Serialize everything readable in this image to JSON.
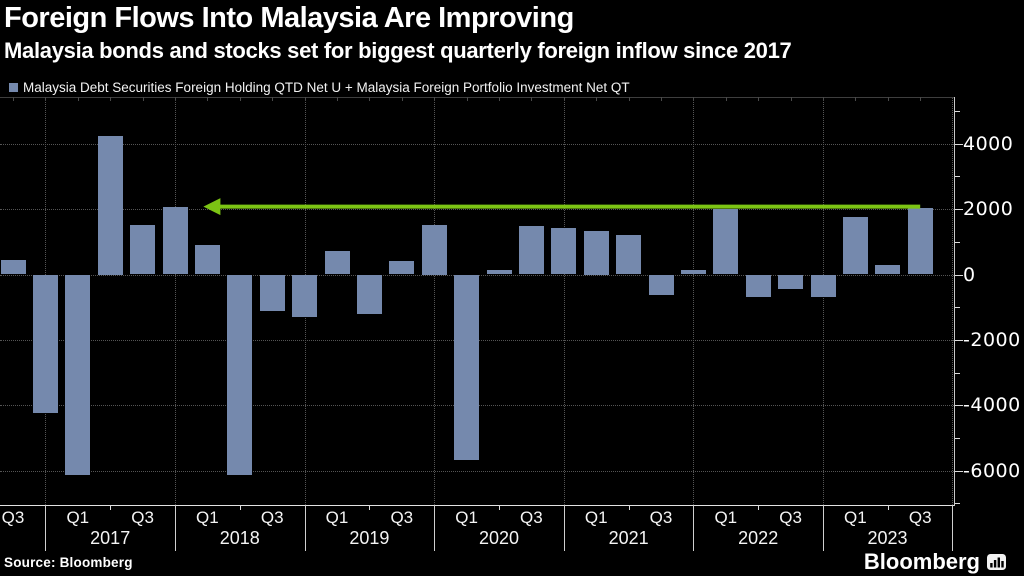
{
  "title": "Foreign Flows Into Malaysia Are Improving",
  "subtitle": "Malaysia bonds and stocks set for biggest quarterly foreign inflow since 2017",
  "legend": {
    "label": "Malaysia Debt Securities Foreign Holding QTD Net U + Malaysia Foreign Portfolio Investment Net QT",
    "marker_color": "#7589ad"
  },
  "source": "Source:  Bloomberg",
  "brand": {
    "name": "Bloomberg",
    "icon": "bar-chart-icon"
  },
  "colors": {
    "background": "#000000",
    "bar": "#7589ad",
    "arrow": "#7cc414",
    "grid": "#555555",
    "axis": "#e2e2e2",
    "text": "#ffffff"
  },
  "chart_data": {
    "type": "bar",
    "title": "Foreign Flows Into Malaysia Are Improving",
    "subtitle": "Malaysia bonds and stocks set for biggest quarterly foreign inflow since 2017",
    "series_name": "Malaysia Debt Securities Foreign Holding QTD Net U + Malaysia Foreign Portfolio Investment Net QT",
    "categories": [
      "Q3 2016",
      "Q4 2016",
      "Q1 2017",
      "Q2 2017",
      "Q3 2017",
      "Q4 2017",
      "Q1 2018",
      "Q2 2018",
      "Q3 2018",
      "Q4 2018",
      "Q1 2019",
      "Q2 2019",
      "Q3 2019",
      "Q4 2019",
      "Q1 2020",
      "Q2 2020",
      "Q3 2020",
      "Q4 2020",
      "Q1 2021",
      "Q2 2021",
      "Q3 2021",
      "Q4 2021",
      "Q1 2022",
      "Q2 2022",
      "Q3 2022",
      "Q4 2022",
      "Q1 2023",
      "Q2 2023",
      "Q3 2023"
    ],
    "values": [
      450,
      -4230,
      -6140,
      4250,
      1500,
      2070,
      890,
      -6120,
      -1100,
      -1310,
      730,
      -1210,
      410,
      1530,
      -5660,
      150,
      1490,
      1420,
      1330,
      1210,
      -620,
      150,
      1990,
      -700,
      -450,
      -700,
      1750,
      280,
      2020
    ],
    "xlabel": "",
    "ylabel": "",
    "ylim": [
      -7100,
      5400
    ],
    "y_axis": {
      "labeled_ticks": [
        4000,
        2000,
        0,
        -2000,
        -4000,
        -6000
      ],
      "minor_tick_step": 1000
    },
    "x_axis": {
      "quarter_labels_shown": [
        "Q1",
        "Q3"
      ],
      "year_labels": [
        "2017",
        "2018",
        "2019",
        "2020",
        "2021",
        "2022",
        "2023"
      ]
    },
    "grid": "dotted",
    "legend_position": "top-left",
    "annotation": {
      "type": "arrow",
      "direction": "left",
      "value": 2075,
      "tip_category": "Q1 2018",
      "end_category": "Q3 2023",
      "color": "#7cc414",
      "meaning": "current quarterly inflow matches level last seen in 2017"
    }
  }
}
